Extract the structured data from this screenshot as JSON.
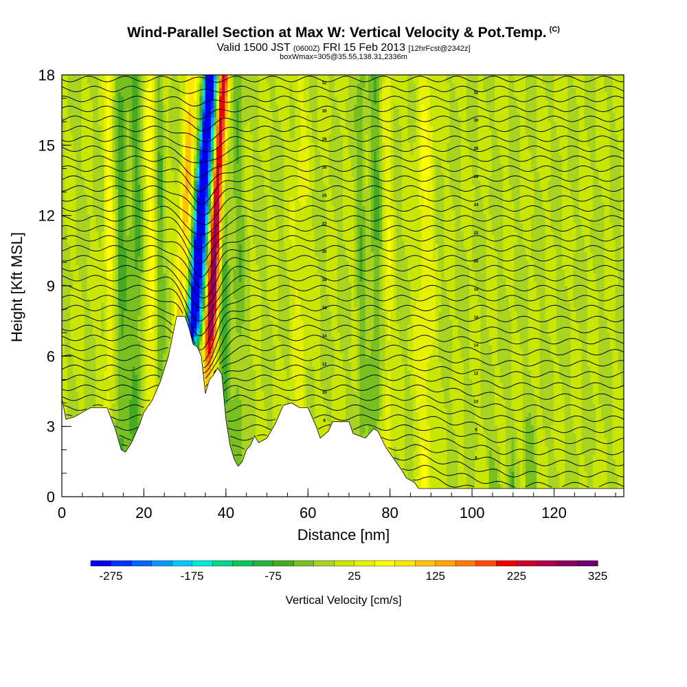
{
  "header": {
    "title": "Wind-Parallel Section at Max W: Vertical Velocity & Pot.Temp.",
    "copyright": "(C)",
    "valid_prefix": "Valid 1500 JST",
    "valid_zulu": "(0600Z)",
    "valid_date": "FRI 15 Feb 2013",
    "forecast": "[12hrFcst@2342z]",
    "box": "boxWmax=305@35.55,138.31,2336m"
  },
  "chart_data": {
    "type": "heatmap",
    "xlabel": "Distance [nm]",
    "ylabel": "Height [Kft MSL]",
    "xlim": [
      0,
      137
    ],
    "ylim": [
      0,
      18
    ],
    "x_ticks": [
      "0",
      "20",
      "40",
      "60",
      "80",
      "100",
      "120"
    ],
    "y_ticks": [
      "0",
      "3",
      "6",
      "9",
      "12",
      "15",
      "18"
    ],
    "colorbar": {
      "label": "Vertical Velocity [cm/s]",
      "tick_labels": [
        "-275",
        "-175",
        "-75",
        "25",
        "125",
        "225",
        "325"
      ],
      "levels": [
        -300,
        325
      ],
      "colors": [
        "#0000ee",
        "#0033ff",
        "#0066ff",
        "#0099ff",
        "#00c8ff",
        "#00e8d8",
        "#00d890",
        "#00c85a",
        "#22b43a",
        "#44aa22",
        "#77c020",
        "#a8d420",
        "#c8e600",
        "#e6f000",
        "#ffff00",
        "#ffe400",
        "#ffc400",
        "#ffa400",
        "#ff7c00",
        "#ff4c00",
        "#ee0000",
        "#cc0030",
        "#aa0050",
        "#88005e",
        "#6a006e"
      ]
    },
    "terrain_kft": [
      [
        0,
        4.2
      ],
      [
        1,
        3.3
      ],
      [
        3,
        3.4
      ],
      [
        5,
        3.6
      ],
      [
        7,
        3.8
      ],
      [
        11,
        3.8
      ],
      [
        13,
        2.9
      ],
      [
        14.5,
        2.0
      ],
      [
        15.5,
        1.9
      ],
      [
        17,
        2.3
      ],
      [
        19,
        3.1
      ],
      [
        20,
        3.6
      ],
      [
        22,
        4.1
      ],
      [
        24,
        4.9
      ],
      [
        26,
        6.0
      ],
      [
        28,
        7.7
      ],
      [
        30,
        7.7
      ],
      [
        31,
        7.2
      ],
      [
        32,
        6.5
      ],
      [
        33,
        6.4
      ],
      [
        34,
        6.0
      ],
      [
        35,
        4.4
      ],
      [
        36,
        5.0
      ],
      [
        37,
        5.2
      ],
      [
        38,
        5.5
      ],
      [
        39,
        5.2
      ],
      [
        40,
        3.3
      ],
      [
        41,
        2.2
      ],
      [
        42,
        1.6
      ],
      [
        43,
        1.3
      ],
      [
        44,
        1.5
      ],
      [
        45,
        2.0
      ],
      [
        46,
        2.2
      ],
      [
        47,
        2.6
      ],
      [
        48,
        2.3
      ],
      [
        50,
        2.5
      ],
      [
        52,
        3.1
      ],
      [
        54,
        3.9
      ],
      [
        56,
        4.0
      ],
      [
        58,
        3.8
      ],
      [
        60,
        3.8
      ],
      [
        62,
        3.0
      ],
      [
        63,
        2.5
      ],
      [
        65,
        2.8
      ],
      [
        66,
        3.2
      ],
      [
        70,
        3.2
      ],
      [
        71,
        2.7
      ],
      [
        74,
        2.5
      ],
      [
        76,
        2.9
      ],
      [
        77,
        2.8
      ],
      [
        79,
        2.1
      ],
      [
        81,
        1.6
      ],
      [
        83,
        1.1
      ],
      [
        84,
        0.8
      ],
      [
        86,
        0.6
      ],
      [
        87,
        0.35
      ],
      [
        137,
        0.35
      ]
    ],
    "theta_contour_labels": [
      "32",
      "30",
      "28",
      "26",
      "24",
      "22",
      "20",
      "18",
      "16",
      "14",
      "12",
      "10",
      "8",
      "6"
    ]
  }
}
